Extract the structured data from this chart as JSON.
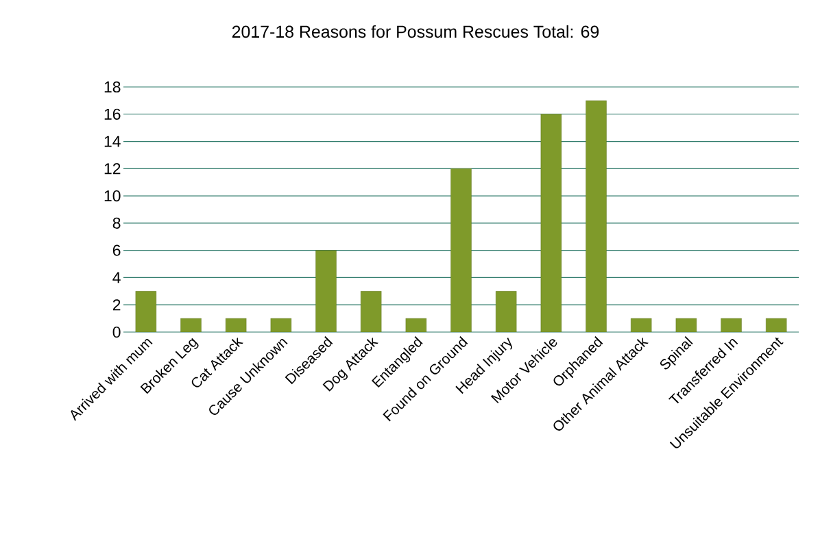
{
  "chart_data": {
    "type": "bar",
    "title": "2017-18 Reasons for Possum Rescues  Total: 69",
    "categories": [
      "Arrived with mum",
      "Broken Leg",
      "Cat Attack",
      "Cause Unknown",
      "Diseased",
      "Dog Attack",
      "Entangled",
      "Found on Ground",
      "Head Injury",
      "Motor Vehicle",
      "Orphaned",
      "Other Animal Attack",
      "Spinal",
      "Transferred In",
      "Unsuitable Environment"
    ],
    "values": [
      3,
      1,
      1,
      1,
      6,
      3,
      1,
      12,
      3,
      16,
      17,
      1,
      1,
      1,
      1
    ],
    "color": "#7f9a2a",
    "ylim": [
      0,
      18
    ],
    "yticks": [
      0,
      2,
      4,
      6,
      8,
      10,
      12,
      14,
      16,
      18
    ],
    "grid": "y"
  }
}
